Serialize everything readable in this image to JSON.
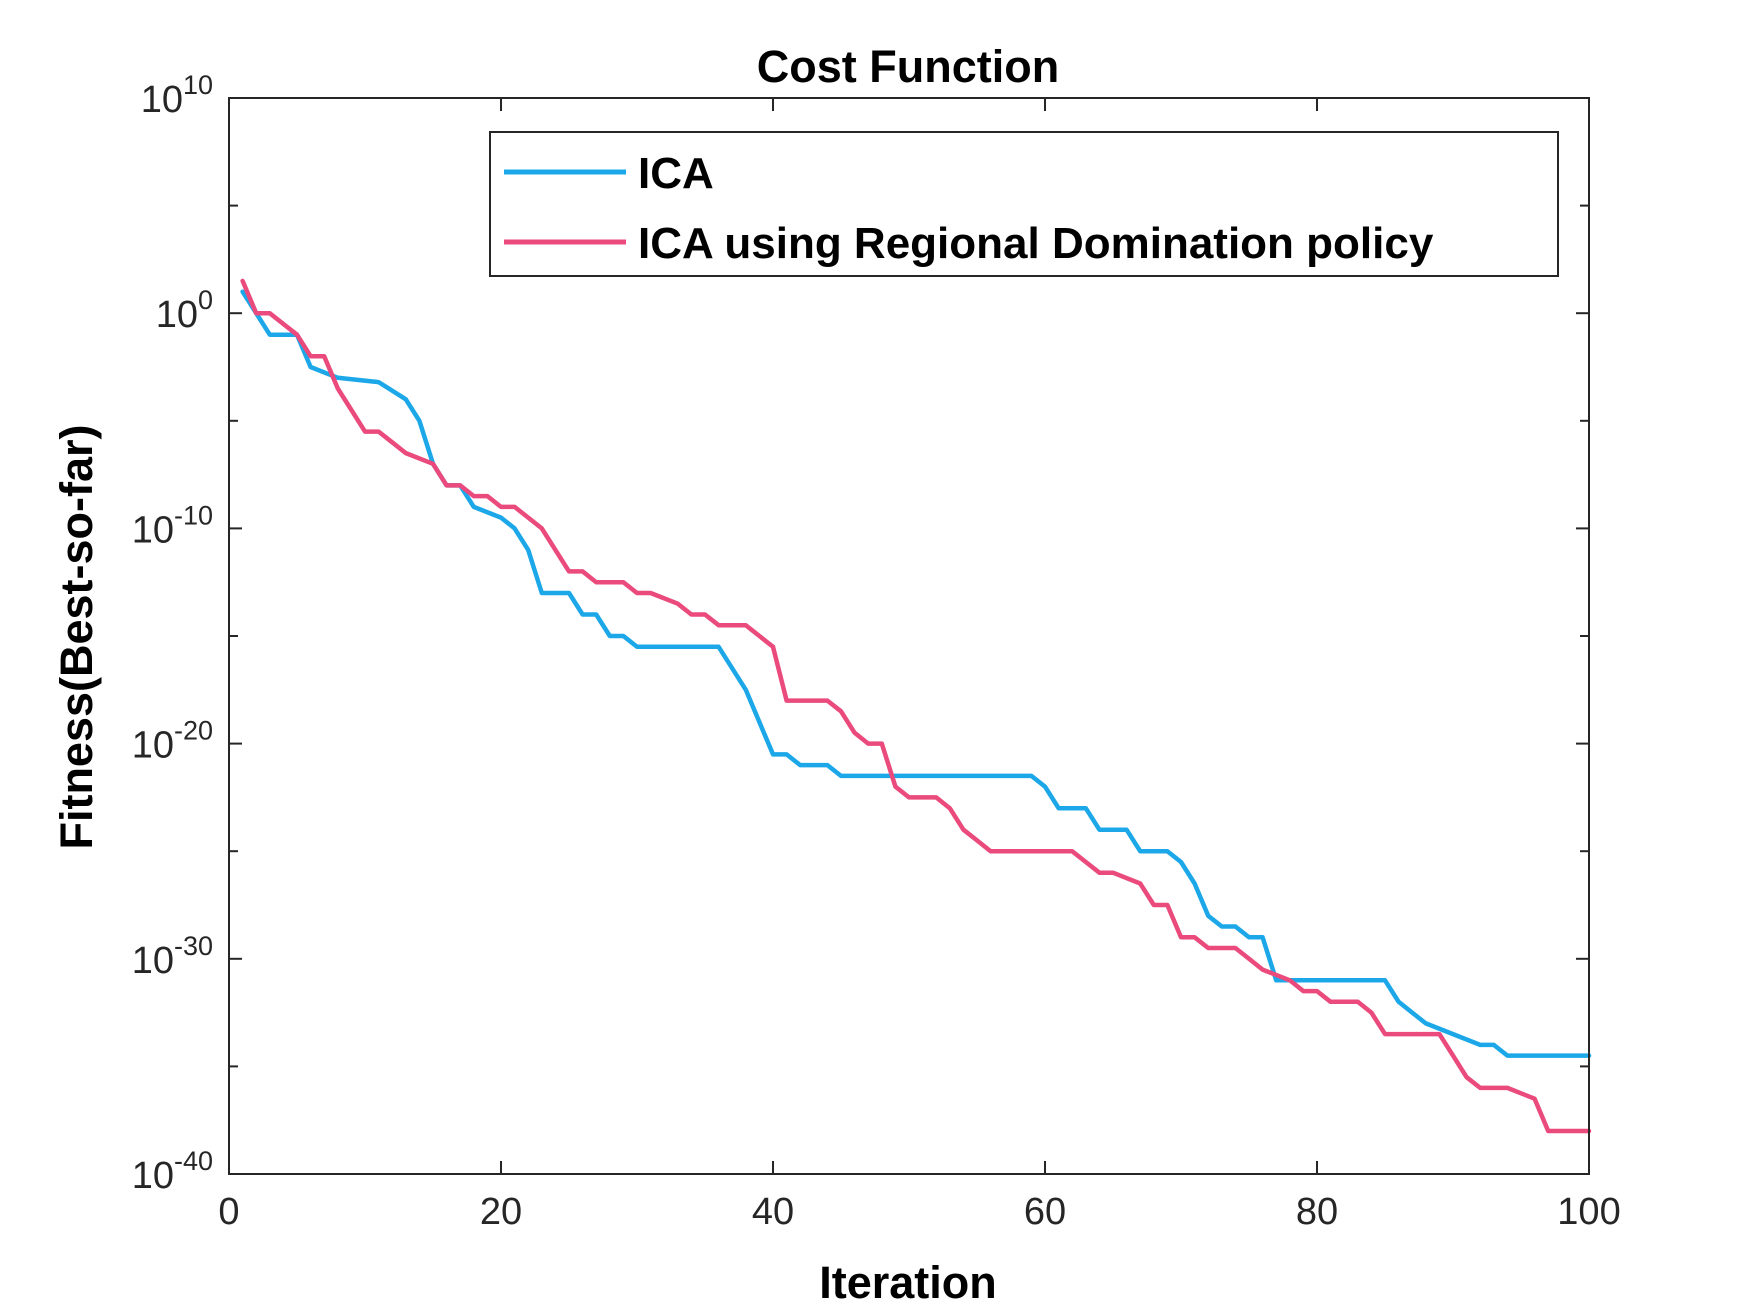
{
  "chart_data": {
    "type": "line",
    "title": "Cost Function",
    "xlabel": "Iteration",
    "ylabel": "Fitness(Best-so-far)",
    "xlim": [
      0,
      100
    ],
    "ylim_exponent": [
      -40,
      10
    ],
    "yscale": "log",
    "x_ticks": [
      0,
      20,
      40,
      60,
      80,
      100
    ],
    "y_ticks": [
      {
        "base": "10",
        "exp": "10",
        "value": 10
      },
      {
        "base": "10",
        "exp": "0",
        "value": 0
      },
      {
        "base": "10",
        "exp": "-10",
        "value": -10
      },
      {
        "base": "10",
        "exp": "-20",
        "value": -20
      },
      {
        "base": "10",
        "exp": "-30",
        "value": -30
      },
      {
        "base": "10",
        "exp": "-40",
        "value": -40
      }
    ],
    "legend_position": "top-right",
    "grid": false,
    "series": [
      {
        "name": "ICA",
        "color": "#1CA8E8",
        "x_log10_points": [
          [
            1,
            1
          ],
          [
            2,
            0
          ],
          [
            3,
            -1
          ],
          [
            5,
            -1
          ],
          [
            6,
            -2.5
          ],
          [
            8,
            -3
          ],
          [
            11,
            -3.2
          ],
          [
            13,
            -4
          ],
          [
            14,
            -5
          ],
          [
            15,
            -7
          ],
          [
            16,
            -8
          ],
          [
            17,
            -8
          ],
          [
            18,
            -9
          ],
          [
            20,
            -9.5
          ],
          [
            21,
            -10
          ],
          [
            22,
            -11
          ],
          [
            23,
            -13
          ],
          [
            25,
            -13
          ],
          [
            26,
            -14
          ],
          [
            27,
            -14
          ],
          [
            28,
            -15
          ],
          [
            29,
            -15
          ],
          [
            30,
            -15.5
          ],
          [
            36,
            -15.5
          ],
          [
            37,
            -16.5
          ],
          [
            38,
            -17.5
          ],
          [
            39,
            -19
          ],
          [
            40,
            -20.5
          ],
          [
            41,
            -20.5
          ],
          [
            42,
            -21
          ],
          [
            44,
            -21
          ],
          [
            45,
            -21.5
          ],
          [
            46,
            -21.5
          ],
          [
            50,
            -21.5
          ],
          [
            59,
            -21.5
          ],
          [
            60,
            -22
          ],
          [
            61,
            -23
          ],
          [
            63,
            -23
          ],
          [
            64,
            -24
          ],
          [
            66,
            -24
          ],
          [
            67,
            -25
          ],
          [
            69,
            -25
          ],
          [
            70,
            -25.5
          ],
          [
            71,
            -26.5
          ],
          [
            72,
            -28
          ],
          [
            73,
            -28.5
          ],
          [
            74,
            -28.5
          ],
          [
            75,
            -29
          ],
          [
            76,
            -29
          ],
          [
            77,
            -31
          ],
          [
            78,
            -31
          ],
          [
            85,
            -31
          ],
          [
            86,
            -32
          ],
          [
            87,
            -32.5
          ],
          [
            88,
            -33
          ],
          [
            90,
            -33.5
          ],
          [
            92,
            -34
          ],
          [
            93,
            -34
          ],
          [
            94,
            -34.5
          ],
          [
            100,
            -34.5
          ]
        ]
      },
      {
        "name": "ICA using Regional Domination policy",
        "color": "#EA4A7C",
        "x_log10_points": [
          [
            1,
            1.5
          ],
          [
            2,
            0
          ],
          [
            3,
            0
          ],
          [
            4,
            -0.5
          ],
          [
            5,
            -1
          ],
          [
            6,
            -2
          ],
          [
            7,
            -2
          ],
          [
            8,
            -3.5
          ],
          [
            9,
            -4.5
          ],
          [
            10,
            -5.5
          ],
          [
            11,
            -5.5
          ],
          [
            12,
            -6
          ],
          [
            13,
            -6.5
          ],
          [
            15,
            -7
          ],
          [
            16,
            -8
          ],
          [
            17,
            -8
          ],
          [
            18,
            -8.5
          ],
          [
            19,
            -8.5
          ],
          [
            20,
            -9
          ],
          [
            21,
            -9
          ],
          [
            22,
            -9.5
          ],
          [
            23,
            -10
          ],
          [
            24,
            -11
          ],
          [
            25,
            -12
          ],
          [
            26,
            -12
          ],
          [
            27,
            -12.5
          ],
          [
            28,
            -12.5
          ],
          [
            29,
            -12.5
          ],
          [
            30,
            -13
          ],
          [
            31,
            -13
          ],
          [
            33,
            -13.5
          ],
          [
            34,
            -14
          ],
          [
            35,
            -14
          ],
          [
            36,
            -14.5
          ],
          [
            38,
            -14.5
          ],
          [
            39,
            -15
          ],
          [
            40,
            -15.5
          ],
          [
            41,
            -18
          ],
          [
            44,
            -18
          ],
          [
            45,
            -18.5
          ],
          [
            46,
            -19.5
          ],
          [
            47,
            -20
          ],
          [
            48,
            -20
          ],
          [
            49,
            -22
          ],
          [
            50,
            -22.5
          ],
          [
            51,
            -22.5
          ],
          [
            52,
            -22.5
          ],
          [
            53,
            -23
          ],
          [
            54,
            -24
          ],
          [
            55,
            -24.5
          ],
          [
            56,
            -25
          ],
          [
            62,
            -25
          ],
          [
            63,
            -25.5
          ],
          [
            64,
            -26
          ],
          [
            65,
            -26
          ],
          [
            67,
            -26.5
          ],
          [
            68,
            -27.5
          ],
          [
            69,
            -27.5
          ],
          [
            70,
            -29
          ],
          [
            71,
            -29
          ],
          [
            72,
            -29.5
          ],
          [
            74,
            -29.5
          ],
          [
            75,
            -30
          ],
          [
            76,
            -30.5
          ],
          [
            78,
            -31
          ],
          [
            79,
            -31.5
          ],
          [
            80,
            -31.5
          ],
          [
            81,
            -32
          ],
          [
            83,
            -32
          ],
          [
            84,
            -32.5
          ],
          [
            85,
            -33.5
          ],
          [
            89,
            -33.5
          ],
          [
            90,
            -34.5
          ],
          [
            91,
            -35.5
          ],
          [
            92,
            -36
          ],
          [
            94,
            -36
          ],
          [
            96,
            -36.5
          ],
          [
            97,
            -38
          ],
          [
            98,
            -38
          ],
          [
            100,
            -38
          ]
        ]
      }
    ]
  }
}
